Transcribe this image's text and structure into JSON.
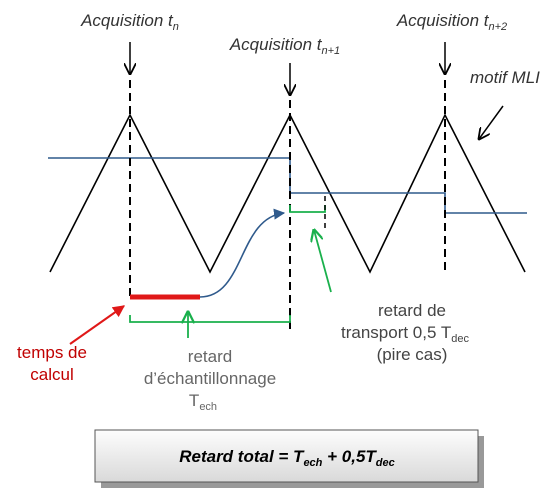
{
  "acquisitions": [
    {
      "label": "Acquisition t",
      "sub": "n"
    },
    {
      "label": "Acquisition t",
      "sub": "n+1"
    },
    {
      "label": "Acquisition t",
      "sub": "n+2"
    }
  ],
  "pwm_label": "motif MLI",
  "compute_label": [
    "temps de",
    "calcul"
  ],
  "sampling_delay": {
    "lines": [
      "retard",
      "d’échantillonnage",
      "T"
    ],
    "sub": "ech"
  },
  "transport_delay": {
    "lines": [
      "retard de",
      "transport 0,5 T",
      "(pire cas)"
    ],
    "sub": "dec"
  },
  "total": [
    "Retard total = T",
    "ech",
    " + 0,5T",
    "dec"
  ]
}
